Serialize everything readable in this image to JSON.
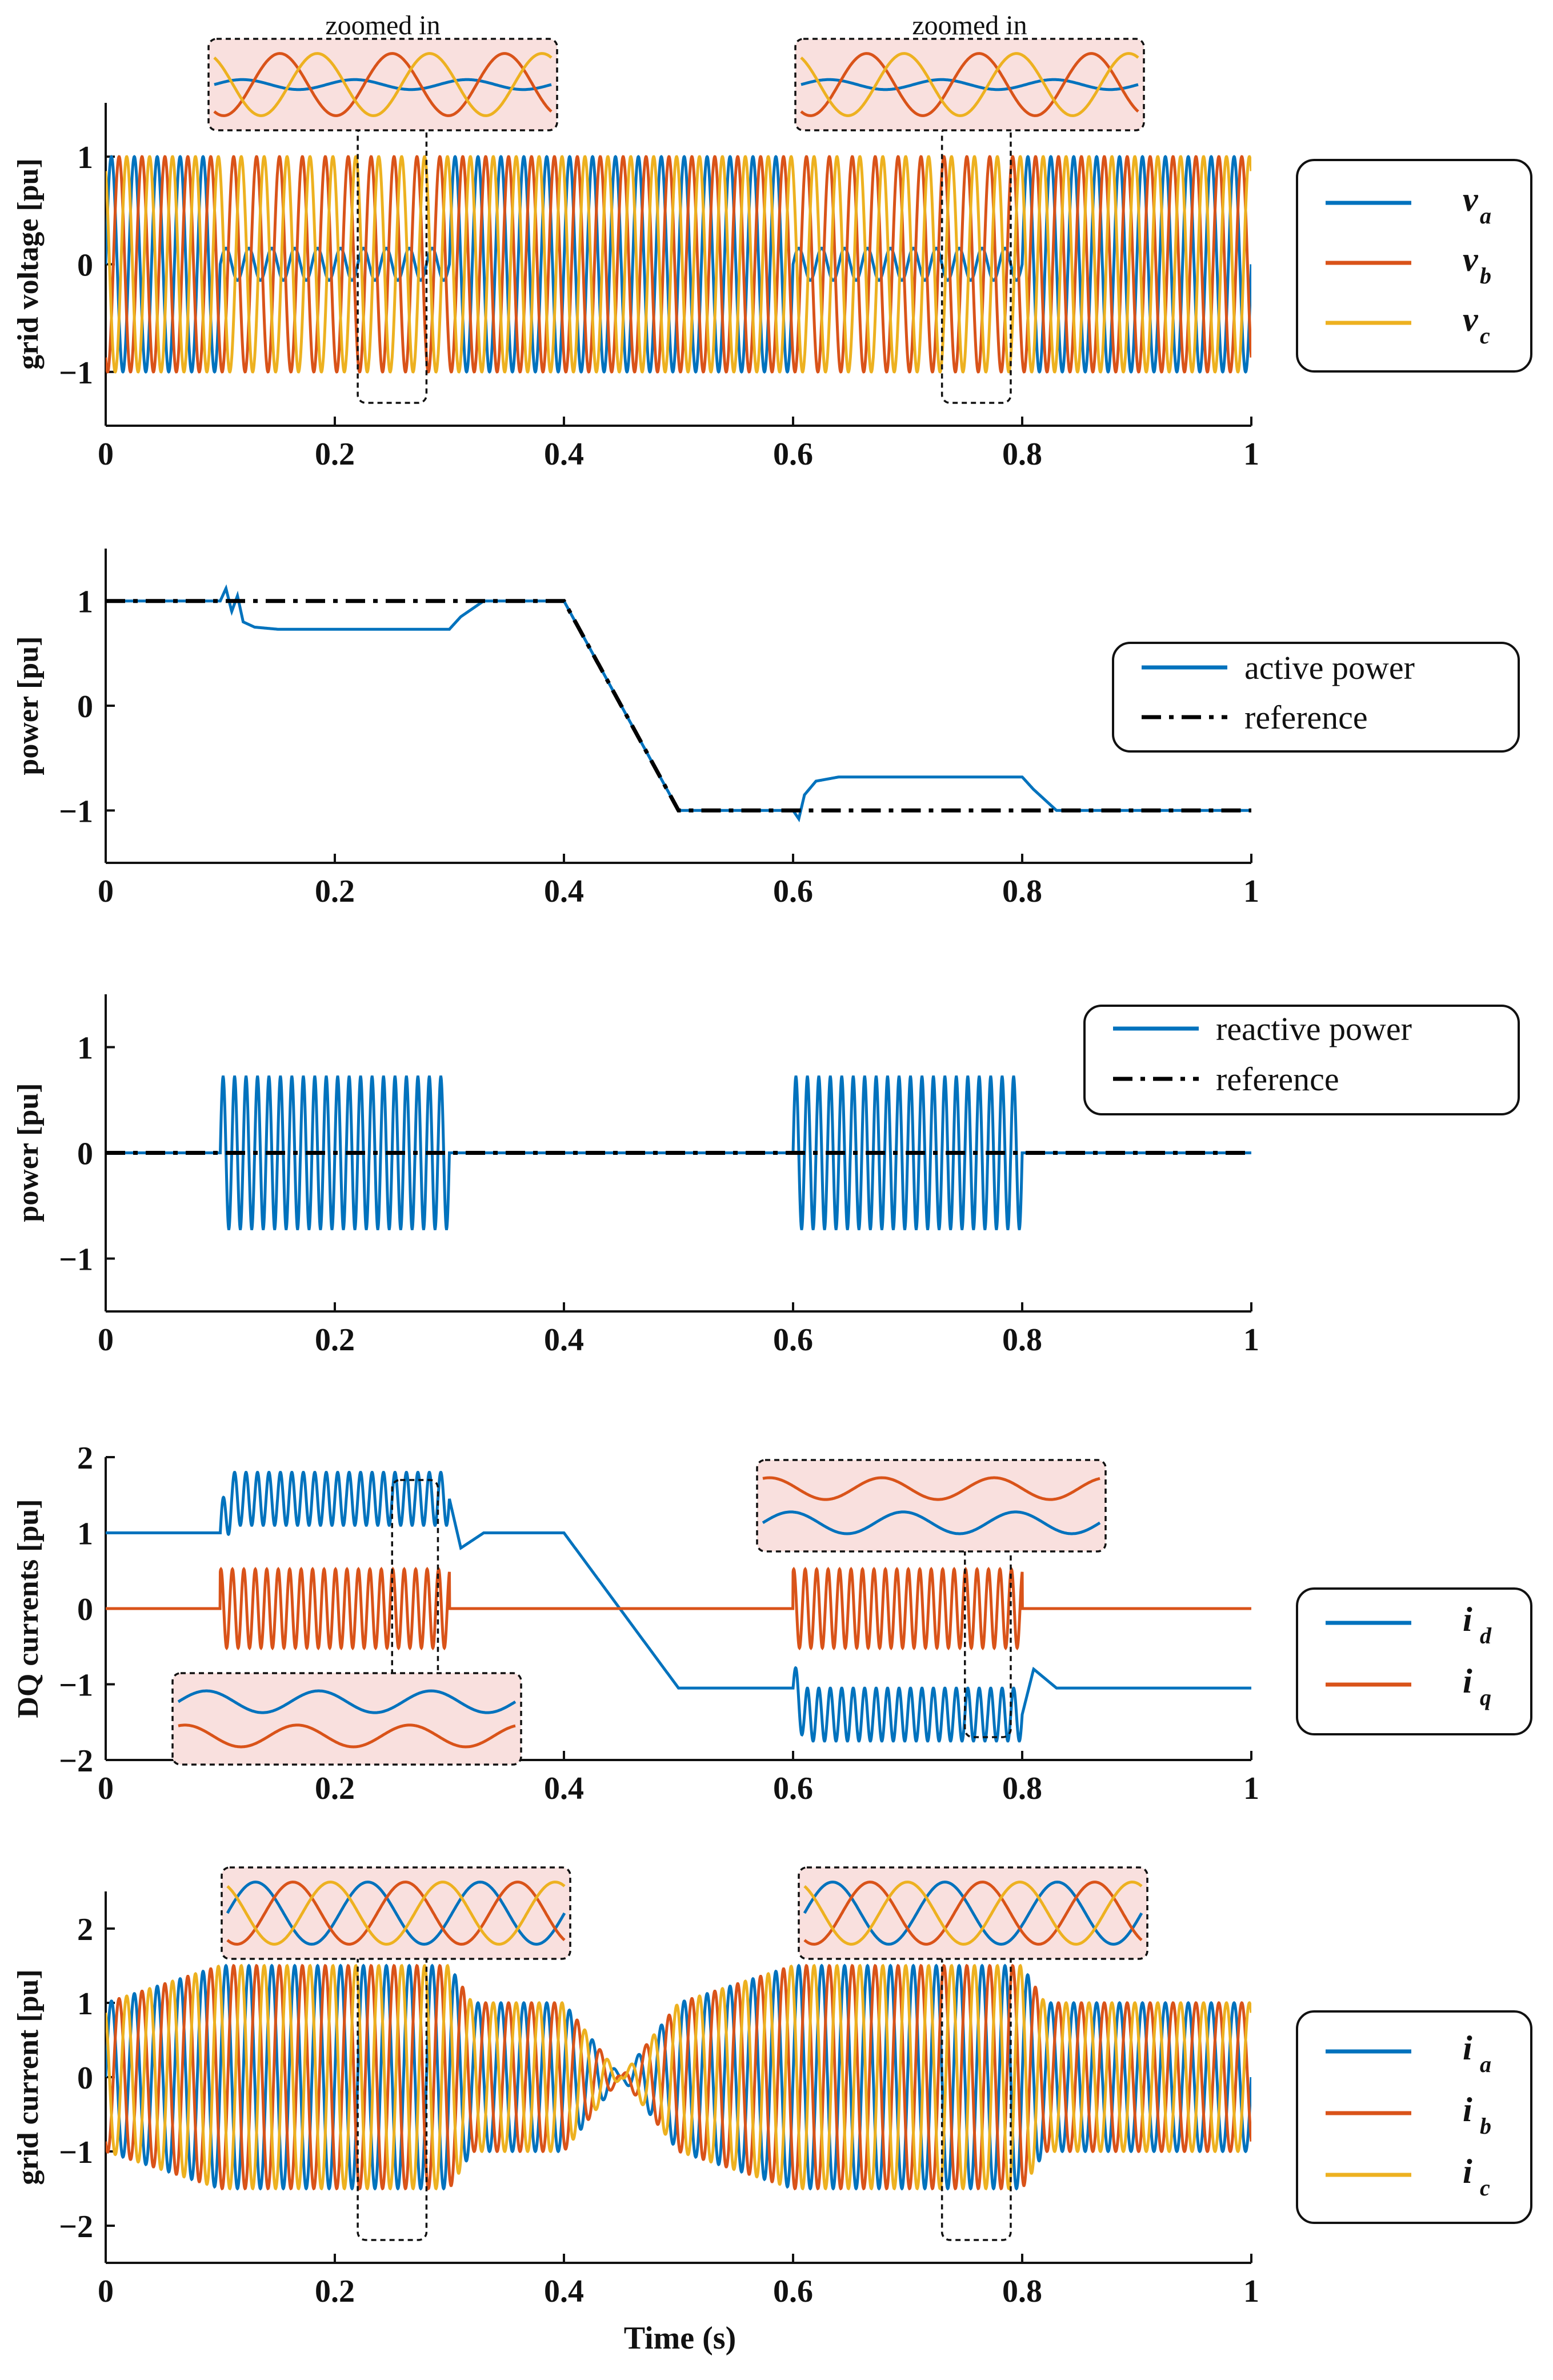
{
  "colors": {
    "a": "#0072BD",
    "b": "#D95319",
    "c": "#EDB120",
    "ref": "#000000",
    "zoom_fill": "#F9E0DE"
  },
  "xlabel": "Time (s)",
  "zoom_label": "zoomed in",
  "chart_data": [
    {
      "id": "grid-voltage",
      "type": "line",
      "ylabel": "grid voltage [pu]",
      "xlim": [
        0,
        1
      ],
      "ylim": [
        -1.5,
        1.5
      ],
      "xticks": [
        0,
        0.2,
        0.4,
        0.6,
        0.8,
        1
      ],
      "xtick_labels": [
        "0",
        "0.2",
        "0.4",
        "0.6",
        "0.8",
        "1"
      ],
      "yticks": [
        -1,
        0,
        1
      ],
      "ytick_labels": [
        "−1",
        "0",
        "1"
      ],
      "series": [
        {
          "name": "v",
          "sub": "a",
          "color_key": "a",
          "signal": "phase",
          "phase_deg": 0,
          "amplitude": 1.0,
          "dip_amplitude": 0.15,
          "dips": [
            [
              0.1,
              0.3
            ],
            [
              0.6,
              0.8
            ]
          ],
          "frequency_hz": 50
        },
        {
          "name": "v",
          "sub": "b",
          "color_key": "b",
          "signal": "phase",
          "phase_deg": -120,
          "amplitude": 1.0,
          "frequency_hz": 50
        },
        {
          "name": "v",
          "sub": "c",
          "color_key": "c",
          "signal": "phase",
          "phase_deg": 120,
          "amplitude": 1.0,
          "frequency_hz": 50
        }
      ],
      "zoom_windows": [
        [
          0.22,
          0.28
        ],
        [
          0.73,
          0.79
        ]
      ],
      "legend_position": "right"
    },
    {
      "id": "active-power",
      "type": "line",
      "ylabel": "power [pu]",
      "xlim": [
        0,
        1
      ],
      "ylim": [
        -1.5,
        1.5
      ],
      "xticks": [
        0,
        0.2,
        0.4,
        0.6,
        0.8,
        1
      ],
      "xtick_labels": [
        "0",
        "0.2",
        "0.4",
        "0.6",
        "0.8",
        "1"
      ],
      "yticks": [
        -1,
        0,
        1
      ],
      "ytick_labels": [
        "−1",
        "0",
        "1"
      ],
      "series": [
        {
          "name": "active power",
          "color_key": "a",
          "style": "solid",
          "x": [
            0,
            0.1,
            0.105,
            0.11,
            0.115,
            0.12,
            0.13,
            0.15,
            0.3,
            0.31,
            0.33,
            0.4,
            0.5,
            0.6,
            0.605,
            0.61,
            0.62,
            0.64,
            0.8,
            0.81,
            0.83,
            1
          ],
          "y": [
            1,
            1,
            1.12,
            0.9,
            1.05,
            0.8,
            0.75,
            0.73,
            0.73,
            0.85,
            1.0,
            1.0,
            -1.0,
            -1.0,
            -1.08,
            -0.85,
            -0.72,
            -0.68,
            -0.68,
            -0.8,
            -1.0,
            -1.0
          ]
        },
        {
          "name": "reference",
          "color_key": "ref",
          "style": "dashdot",
          "x": [
            0,
            0.4,
            0.5,
            1
          ],
          "y": [
            1,
            1,
            -1,
            -1
          ]
        }
      ],
      "legend_position": "right"
    },
    {
      "id": "reactive-power",
      "type": "line",
      "ylabel": "power [pu]",
      "xlim": [
        0,
        1
      ],
      "ylim": [
        -1.5,
        1.5
      ],
      "xticks": [
        0,
        0.2,
        0.4,
        0.6,
        0.8,
        1
      ],
      "xtick_labels": [
        "0",
        "0.2",
        "0.4",
        "0.6",
        "0.8",
        "1"
      ],
      "yticks": [
        -1,
        0,
        1
      ],
      "ytick_labels": [
        "−1",
        "0",
        "1"
      ],
      "series": [
        {
          "name": "reactive power",
          "color_key": "a",
          "style": "solid",
          "signal": "q_oscillation",
          "base": 0.0,
          "amplitude": 0.72,
          "frequency_hz": 100,
          "windows": [
            [
              0.1,
              0.3
            ],
            [
              0.6,
              0.8
            ]
          ]
        },
        {
          "name": "reference",
          "color_key": "ref",
          "style": "dashdot",
          "x": [
            0,
            1
          ],
          "y": [
            0,
            0
          ]
        }
      ],
      "legend_position": "top-right"
    },
    {
      "id": "dq-currents",
      "type": "line",
      "ylabel": "DQ currents [pu]",
      "xlim": [
        0,
        1
      ],
      "ylim": [
        -2,
        2
      ],
      "xticks": [
        0,
        0.2,
        0.4,
        0.6,
        0.8,
        1
      ],
      "xtick_labels": [
        "0",
        "0.2",
        "0.4",
        "0.6",
        "0.8",
        "1"
      ],
      "yticks": [
        -2,
        -1,
        0,
        1,
        2
      ],
      "ytick_labels": [
        "−2",
        "−1",
        "0",
        "1",
        "2"
      ],
      "series": [
        {
          "name": "i",
          "sub": "d",
          "color_key": "a",
          "signal": "id",
          "x": [
            0,
            0.1,
            0.11,
            0.3,
            0.31,
            0.33,
            0.4,
            0.5,
            0.6,
            0.61,
            0.8,
            0.81,
            0.83,
            1
          ],
          "y": [
            1,
            1,
            1.45,
            1.45,
            0.8,
            1.0,
            1.0,
            -1.05,
            -1.05,
            -1.4,
            -1.4,
            -0.8,
            -1.05,
            -1.05
          ],
          "oscillation_amplitude": 0.35,
          "frequency_hz": 100,
          "windows": [
            [
              0.1,
              0.3
            ],
            [
              0.6,
              0.8
            ]
          ]
        },
        {
          "name": "i",
          "sub": "q",
          "color_key": "b",
          "signal": "iq",
          "base": 0.0,
          "oscillation_amplitude": 0.52,
          "frequency_hz": 100,
          "windows": [
            [
              0.1,
              0.3
            ],
            [
              0.6,
              0.8
            ]
          ]
        }
      ],
      "zoom_windows": [
        [
          0.25,
          0.29
        ],
        [
          0.75,
          0.79
        ]
      ],
      "legend_position": "right"
    },
    {
      "id": "grid-current",
      "type": "line",
      "ylabel": "grid current [pu]",
      "xlim": [
        0,
        1
      ],
      "ylim": [
        -2.5,
        2.5
      ],
      "xticks": [
        0,
        0.2,
        0.4,
        0.6,
        0.8,
        1
      ],
      "xtick_labels": [
        "0",
        "0.2",
        "0.4",
        "0.6",
        "0.8",
        "1"
      ],
      "yticks": [
        -2,
        -1,
        0,
        1,
        2
      ],
      "ytick_labels": [
        "−2",
        "−1",
        "0",
        "1",
        "2"
      ],
      "envelope_x": [
        0,
        0.1,
        0.3,
        0.32,
        0.4,
        0.45,
        0.5,
        0.6,
        0.8,
        0.82,
        1
      ],
      "envelope_y": [
        1,
        1.5,
        1.5,
        1,
        1,
        0,
        1,
        1.5,
        1.5,
        1,
        1
      ],
      "series": [
        {
          "name": "i",
          "sub": "a",
          "color_key": "a",
          "signal": "phase",
          "phase_deg": 0,
          "frequency_hz": 50
        },
        {
          "name": "i",
          "sub": "b",
          "color_key": "b",
          "signal": "phase",
          "phase_deg": -120,
          "frequency_hz": 50
        },
        {
          "name": "i",
          "sub": "c",
          "color_key": "c",
          "signal": "phase",
          "phase_deg": 120,
          "frequency_hz": 50
        }
      ],
      "zoom_windows": [
        [
          0.22,
          0.28
        ],
        [
          0.73,
          0.79
        ]
      ],
      "legend_position": "right"
    }
  ]
}
